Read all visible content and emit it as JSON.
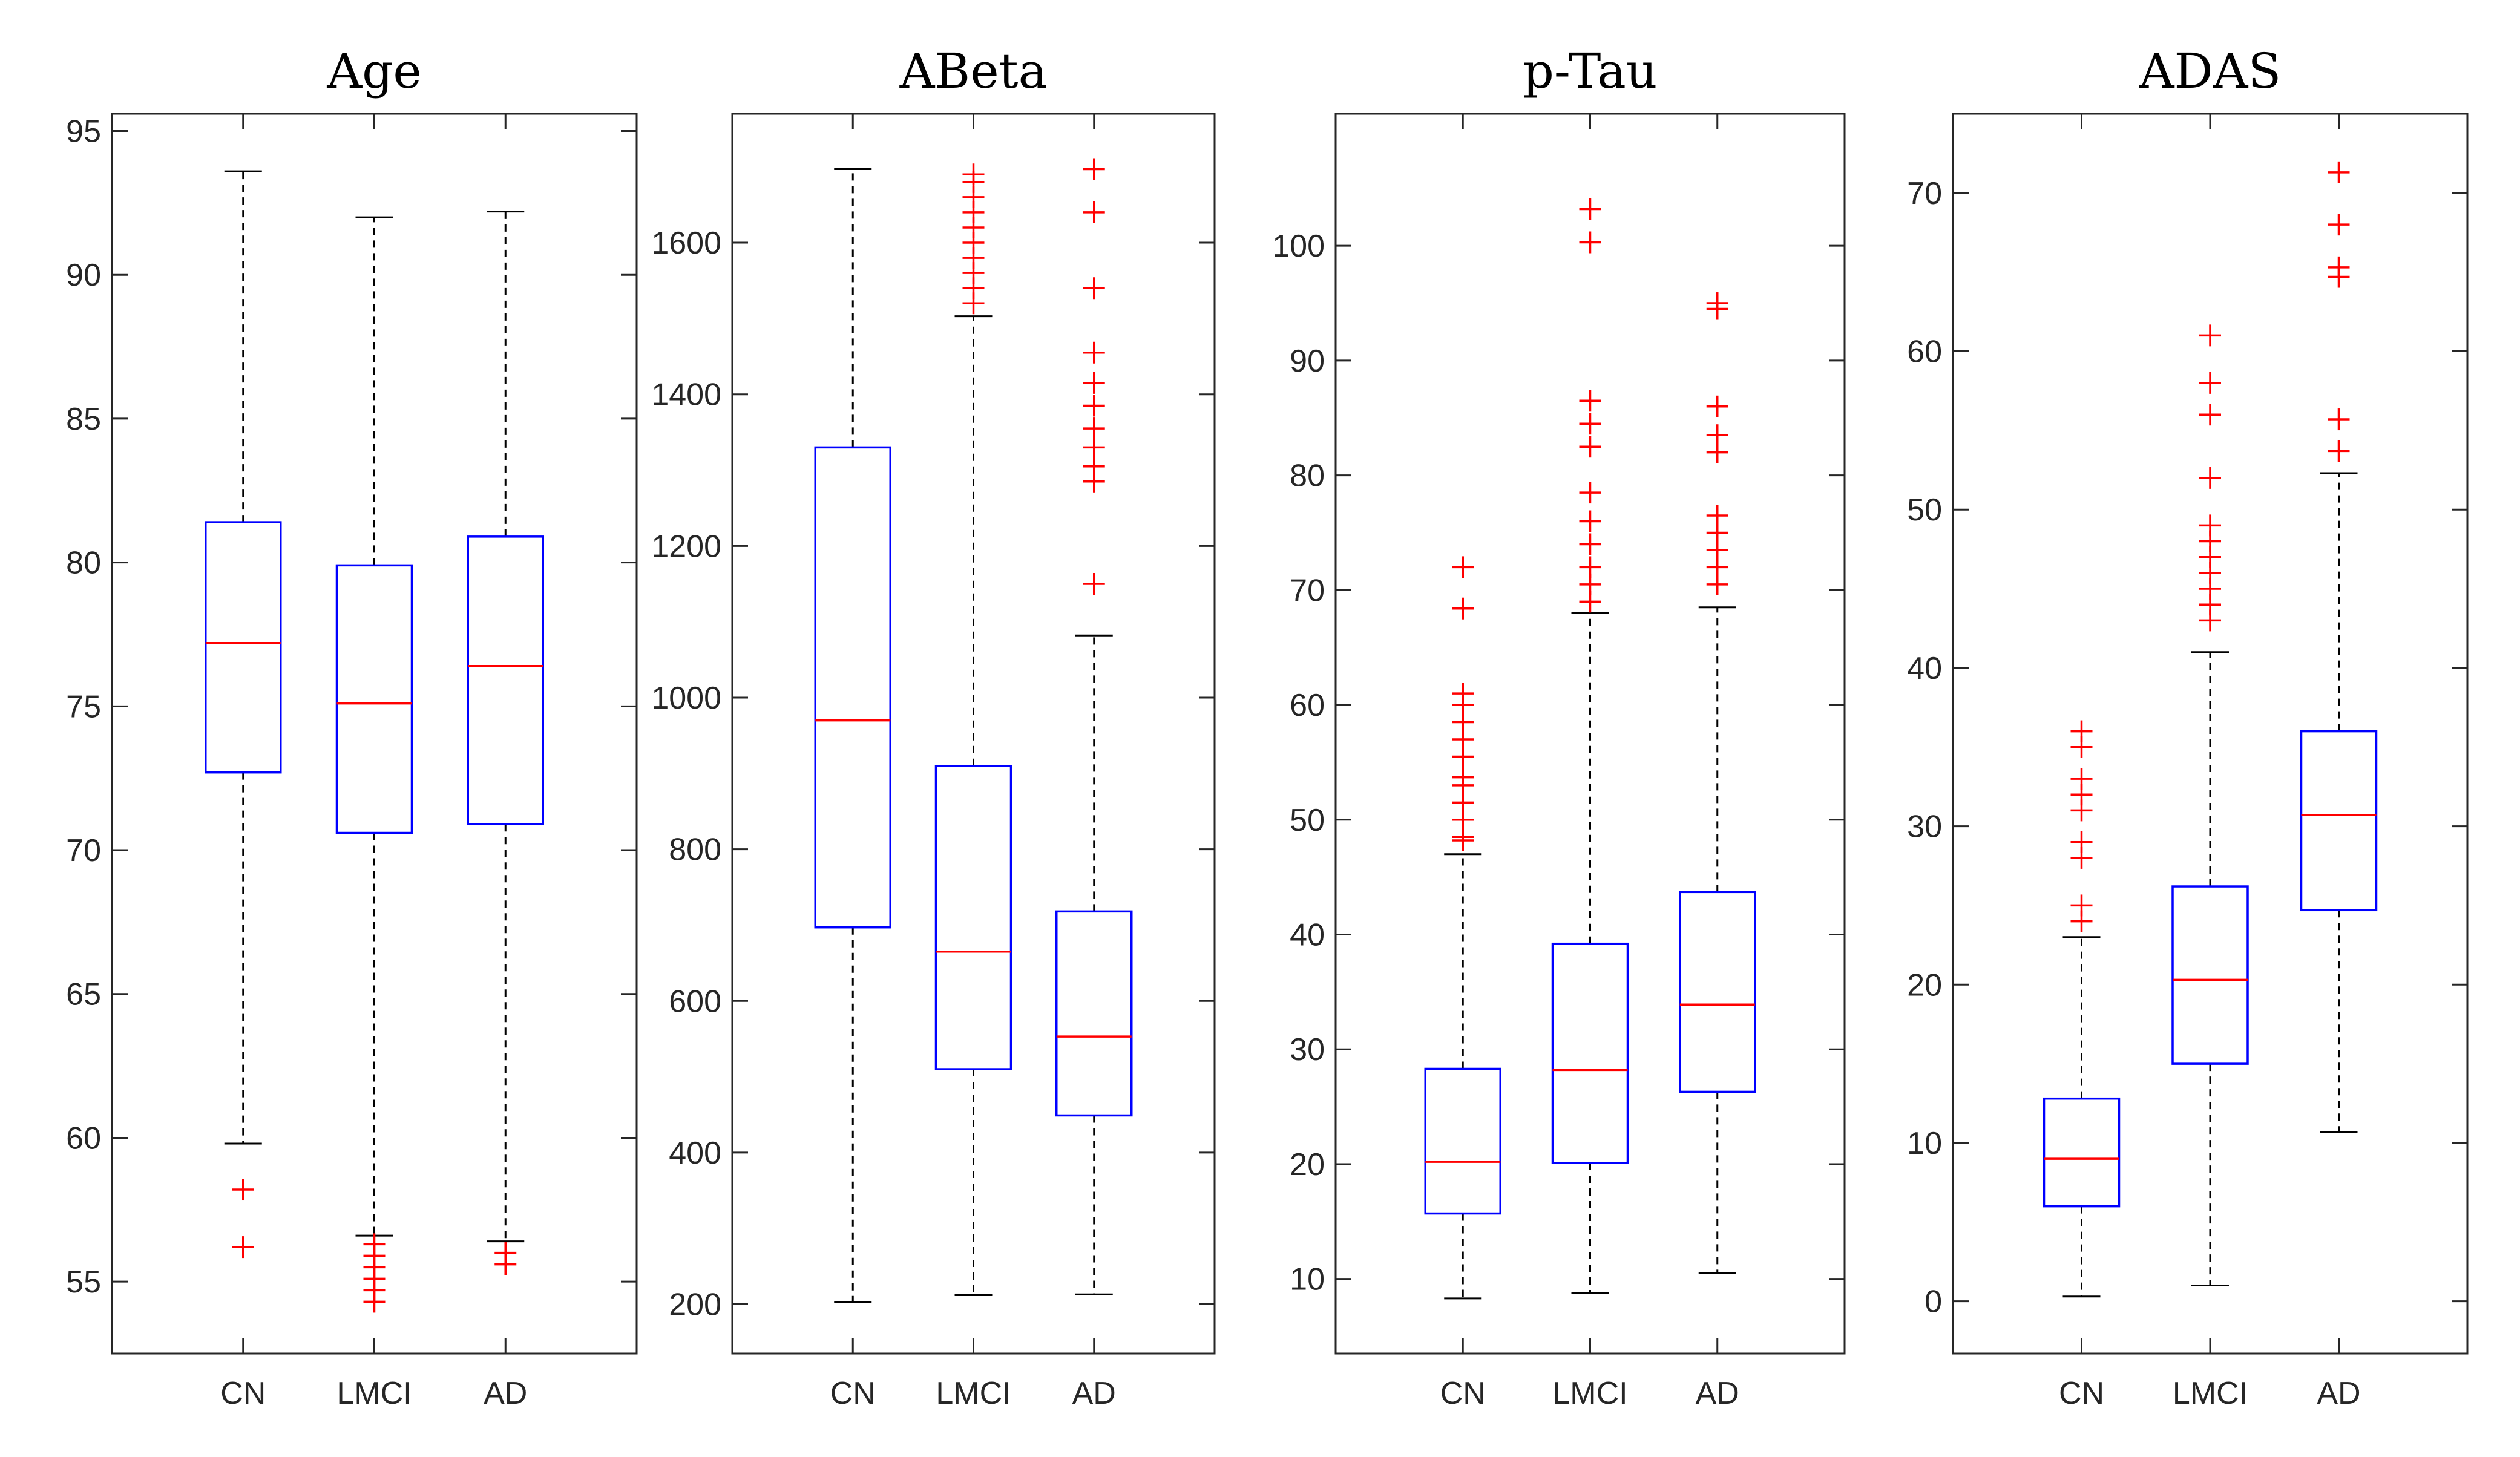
{
  "colors": {
    "box": "#0000ff",
    "median": "#ff0000",
    "outlier": "#ff0000",
    "whisker": "#000000"
  },
  "chart_data": [
    {
      "type": "box",
      "title": "Age",
      "categories": [
        "CN",
        "LMCI",
        "AD"
      ],
      "ylim": [
        52.5,
        95.6
      ],
      "yticks": [
        55,
        60,
        65,
        70,
        75,
        80,
        85,
        90,
        95
      ],
      "boxes": [
        {
          "category": "CN",
          "whisker_low": 59.8,
          "q1": 72.7,
          "median": 77.2,
          "q3": 81.4,
          "whisker_high": 93.6,
          "outliers": [
            58.2,
            56.2
          ]
        },
        {
          "category": "LMCI",
          "whisker_low": 56.6,
          "q1": 70.6,
          "median": 75.1,
          "q3": 79.9,
          "whisker_high": 92.0,
          "outliers": [
            56.3,
            55.9,
            55.5,
            55.1,
            54.7,
            54.3
          ]
        },
        {
          "category": "AD",
          "whisker_low": 56.4,
          "q1": 70.9,
          "median": 76.4,
          "q3": 80.9,
          "whisker_high": 92.2,
          "outliers": [
            56.0,
            55.6
          ]
        }
      ]
    },
    {
      "type": "box",
      "title": "ABeta",
      "categories": [
        "CN",
        "LMCI",
        "AD"
      ],
      "ylim": [
        135,
        1770
      ],
      "yticks": [
        200,
        400,
        600,
        800,
        1000,
        1200,
        1400,
        1600
      ],
      "boxes": [
        {
          "category": "CN",
          "whisker_low": 203,
          "q1": 697,
          "median": 970,
          "q3": 1330,
          "whisker_high": 1697,
          "outliers": []
        },
        {
          "category": "LMCI",
          "whisker_low": 212,
          "q1": 510,
          "median": 665,
          "q3": 910,
          "whisker_high": 1503,
          "outliers": [
            1520,
            1540,
            1560,
            1580,
            1600,
            1620,
            1640,
            1660,
            1680,
            1690
          ]
        },
        {
          "category": "AD",
          "whisker_low": 213,
          "q1": 449,
          "median": 553,
          "q3": 718,
          "whisker_high": 1082,
          "outliers": [
            1150,
            1285,
            1305,
            1330,
            1355,
            1385,
            1415,
            1455,
            1540,
            1640,
            1697
          ]
        }
      ]
    },
    {
      "type": "box",
      "title": "p-Tau",
      "categories": [
        "CN",
        "LMCI",
        "AD"
      ],
      "ylim": [
        3.5,
        111.5
      ],
      "yticks": [
        10,
        20,
        30,
        40,
        50,
        60,
        70,
        80,
        90,
        100
      ],
      "boxes": [
        {
          "category": "CN",
          "whisker_low": 8.3,
          "q1": 15.7,
          "median": 20.2,
          "q3": 28.3,
          "whisker_high": 47.0,
          "outliers": [
            48.2,
            48.5,
            50.0,
            51.5,
            53.0,
            53.7,
            55.5,
            57.0,
            58.5,
            60.0,
            61.0,
            68.4,
            72.0
          ]
        },
        {
          "category": "LMCI",
          "whisker_low": 8.8,
          "q1": 20.1,
          "median": 28.2,
          "q3": 39.2,
          "whisker_high": 68.0,
          "outliers": [
            69.0,
            70.5,
            72.0,
            74.0,
            76.0,
            78.5,
            82.5,
            84.5,
            86.5,
            100.3,
            103.2
          ]
        },
        {
          "category": "AD",
          "whisker_low": 10.5,
          "q1": 26.3,
          "median": 33.9,
          "q3": 43.7,
          "whisker_high": 68.5,
          "outliers": [
            70.5,
            72.0,
            73.5,
            75.0,
            76.5,
            82.0,
            83.5,
            86.0,
            94.5,
            95.0
          ]
        }
      ]
    },
    {
      "type": "box",
      "title": "ADAS",
      "categories": [
        "CN",
        "LMCI",
        "AD"
      ],
      "ylim": [
        -3.3,
        75.0
      ],
      "yticks": [
        0,
        10,
        20,
        30,
        40,
        50,
        60,
        70
      ],
      "boxes": [
        {
          "category": "CN",
          "whisker_low": 0.3,
          "q1": 6.0,
          "median": 9.0,
          "q3": 12.8,
          "whisker_high": 23.0,
          "outliers": [
            24.0,
            25.0,
            28.0,
            29.0,
            31.0,
            32.0,
            33.0,
            35.0,
            36.0
          ]
        },
        {
          "category": "LMCI",
          "whisker_low": 1.0,
          "q1": 15.0,
          "median": 20.3,
          "q3": 26.2,
          "whisker_high": 41.0,
          "outliers": [
            43.0,
            44.0,
            45.0,
            46.0,
            47.0,
            48.0,
            49.0,
            52.0,
            56.0,
            58.0,
            61.0
          ]
        },
        {
          "category": "AD",
          "whisker_low": 10.7,
          "q1": 24.7,
          "median": 30.7,
          "q3": 36.0,
          "whisker_high": 52.3,
          "outliers": [
            53.7,
            55.7,
            64.7,
            65.3,
            68.0,
            71.3
          ]
        }
      ]
    }
  ]
}
